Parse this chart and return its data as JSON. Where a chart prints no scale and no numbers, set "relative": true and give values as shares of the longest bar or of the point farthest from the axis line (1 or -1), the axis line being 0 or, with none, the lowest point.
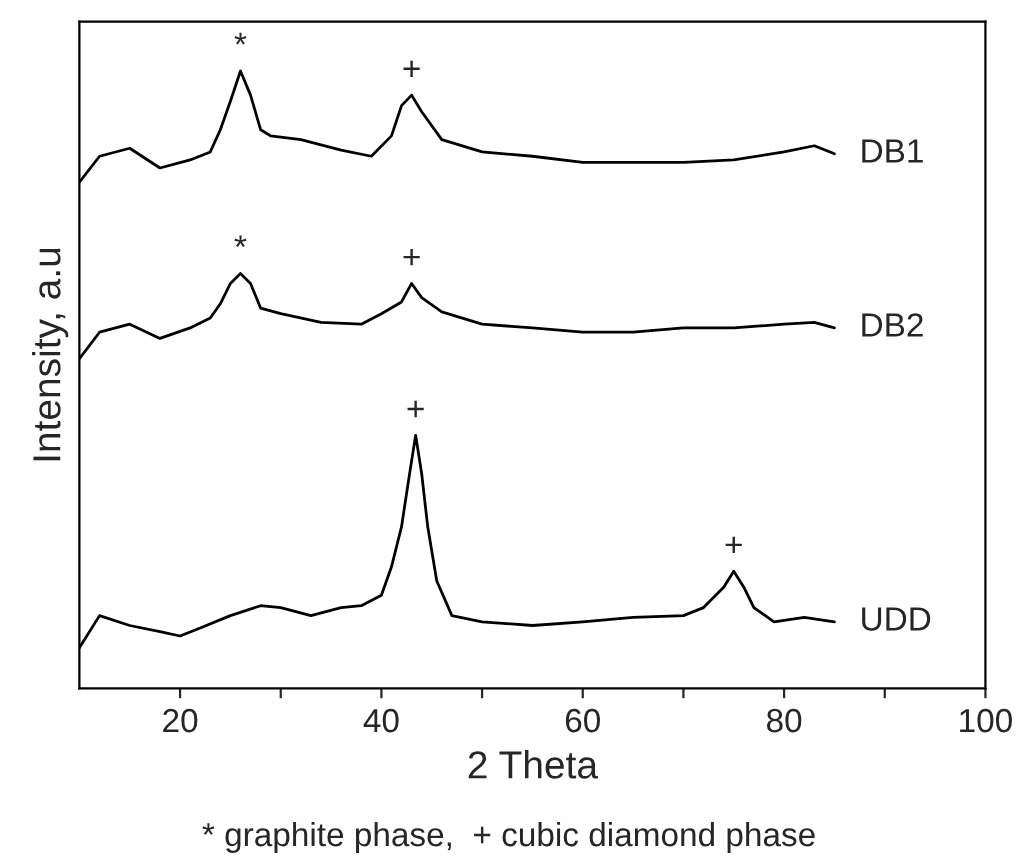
{
  "chart_data": {
    "type": "line",
    "relative": true,
    "xlabel": "2 Theta",
    "ylabel": "Intensity, a.u",
    "xlim": [
      10,
      100
    ],
    "xticks": [
      20,
      {
        "value": 30,
        "label": null
      },
      40,
      {
        "value": 50,
        "label": null
      },
      60,
      {
        "value": 70,
        "label": null
      },
      80,
      {
        "value": 90,
        "label": null
      },
      100
    ],
    "tick_labels": "x",
    "grid": false,
    "legend": false,
    "marker": "none",
    "line_style": "solid",
    "series": [
      {
        "name": "DB1",
        "color": "#000000",
        "x": [
          10,
          12,
          15,
          18,
          21,
          23,
          24,
          25,
          26,
          27,
          28,
          29,
          32,
          36,
          39,
          41,
          42,
          43,
          44,
          46,
          50,
          55,
          60,
          65,
          70,
          75,
          80,
          83,
          85
        ],
        "values": [
          0.82,
          0.862,
          0.875,
          0.843,
          0.856,
          0.869,
          0.905,
          0.951,
          1.0,
          0.961,
          0.905,
          0.895,
          0.889,
          0.872,
          0.862,
          0.895,
          0.944,
          0.961,
          0.934,
          0.889,
          0.869,
          0.862,
          0.852,
          0.852,
          0.852,
          0.856,
          0.869,
          0.879,
          0.866
        ]
      },
      {
        "name": "DB2",
        "color": "#000000",
        "x": [
          10,
          12,
          15,
          18,
          21,
          23,
          24,
          25,
          26,
          27,
          28,
          30,
          34,
          38,
          40,
          42,
          43,
          44,
          46,
          50,
          55,
          60,
          65,
          70,
          75,
          80,
          83,
          85
        ],
        "values": [
          0.534,
          0.577,
          0.59,
          0.567,
          0.584,
          0.6,
          0.623,
          0.656,
          0.672,
          0.656,
          0.616,
          0.607,
          0.593,
          0.59,
          0.607,
          0.626,
          0.656,
          0.633,
          0.61,
          0.59,
          0.584,
          0.577,
          0.577,
          0.584,
          0.584,
          0.59,
          0.593,
          0.584
        ]
      },
      {
        "name": "UDD",
        "color": "#000000",
        "x": [
          10,
          12,
          15,
          18,
          20,
          22,
          25,
          28,
          30,
          33,
          36,
          38,
          40,
          41,
          42,
          42.8,
          43.4,
          44,
          44.6,
          45.5,
          47,
          50,
          55,
          60,
          65,
          70,
          72,
          74,
          75,
          76,
          77,
          79,
          82,
          85
        ],
        "values": [
          0.066,
          0.118,
          0.102,
          0.092,
          0.085,
          0.098,
          0.118,
          0.134,
          0.131,
          0.118,
          0.131,
          0.134,
          0.151,
          0.197,
          0.262,
          0.348,
          0.41,
          0.348,
          0.262,
          0.174,
          0.118,
          0.108,
          0.102,
          0.108,
          0.115,
          0.118,
          0.131,
          0.164,
          0.19,
          0.164,
          0.131,
          0.108,
          0.115,
          0.108
        ]
      }
    ],
    "annotations": [
      {
        "text": "*",
        "x": 26,
        "y": 1.0
      },
      {
        "text": "+",
        "x": 43,
        "y": 0.961
      },
      {
        "text": "*",
        "x": 26,
        "y": 0.672
      },
      {
        "text": "+",
        "x": 43,
        "y": 0.656
      },
      {
        "text": "+",
        "x": 43.4,
        "y": 0.41
      },
      {
        "text": "+",
        "x": 75,
        "y": 0.19
      },
      "* graphite phase,  + cubic diamond phase"
    ]
  }
}
